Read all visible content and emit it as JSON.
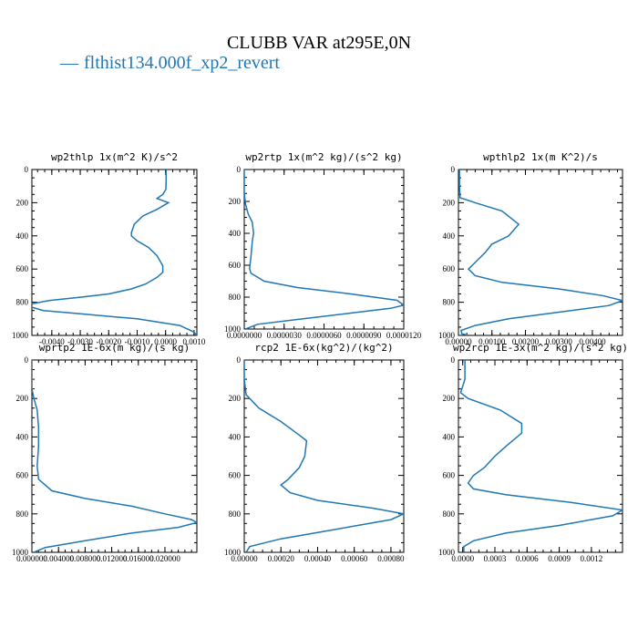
{
  "title": "CLUBB VAR at295E,0N",
  "legend": {
    "marker": "—",
    "label": "flthist134.000f_xp2_revert",
    "color": "#1f77b4"
  },
  "chart_data": [
    {
      "type": "line",
      "title": "wp2thlp  1x(m^2 K)/s^2",
      "ylim": [
        1000,
        0
      ],
      "yticks": [
        0,
        200,
        400,
        600,
        800,
        1000
      ],
      "xlim": [
        -0.0047,
        0.0011
      ],
      "xticks": [
        -0.004,
        -0.003,
        -0.002,
        -0.001,
        0.0,
        0.001
      ],
      "xtick_labels": [
        "-0.0040",
        "-0.0030",
        "-0.0020",
        "-0.0010",
        "0.0000",
        "0.0010"
      ],
      "series": [
        {
          "color": "#1f77b4",
          "x": [
            2e-05,
            2e-05,
            1e-05,
            -0.0001,
            -0.0003,
            0.0001,
            -0.0003,
            -0.0008,
            -0.0011,
            -0.0012,
            -0.0012,
            -0.001,
            -0.0006,
            -0.0003,
            -0.0001,
            -0.0001,
            -0.0003,
            -0.0007,
            -0.0012,
            -0.002,
            -0.003,
            -0.0041,
            -0.0047,
            -0.0047,
            -0.0043,
            -0.003,
            -0.001,
            0.0005,
            0.001,
            0.0011
          ],
          "y": [
            0,
            60,
            120,
            150,
            175,
            200,
            240,
            280,
            330,
            380,
            400,
            430,
            470,
            520,
            580,
            620,
            650,
            690,
            720,
            750,
            770,
            790,
            810,
            830,
            850,
            870,
            900,
            940,
            980,
            1000
          ]
        }
      ]
    },
    {
      "type": "line",
      "title": "wp2rtp  1x(m^2 kg)/(s^2 kg)",
      "ylim": [
        1000,
        0
      ],
      "yticks": [
        0,
        200,
        400,
        600,
        800,
        1000
      ],
      "xlim": [
        0.0,
        1.2e-05
      ],
      "xticks": [
        0.0,
        3e-06,
        6e-06,
        9e-06,
        1.2e-05
      ],
      "xtick_labels": [
        "0.0000000",
        "0.0000030",
        "0.0000060",
        "0.0000090",
        "0.0000120"
      ],
      "series": [
        {
          "color": "#1f77b4",
          "x": [
            0.0,
            0.0,
            1e-07,
            3e-07,
            6e-07,
            7e-07,
            6e-07,
            5e-07,
            4e-07,
            5e-07,
            1.5e-06,
            4e-06,
            8e-06,
            1.15e-05,
            1.2e-05,
            1.1e-05,
            8e-06,
            4e-06,
            1e-06,
            1e-07
          ],
          "y": [
            0,
            150,
            220,
            280,
            330,
            400,
            450,
            550,
            620,
            650,
            700,
            740,
            780,
            820,
            850,
            870,
            900,
            940,
            970,
            1000
          ]
        }
      ]
    },
    {
      "type": "line",
      "title": "wpthlp2  1x(m K^2)/s",
      "ylim": [
        1000,
        0
      ],
      "yticks": [
        0,
        200,
        400,
        600,
        800,
        1000
      ],
      "xlim": [
        0.0,
        0.0049
      ],
      "xticks": [
        0.0,
        0.001,
        0.002,
        0.003,
        0.004
      ],
      "xtick_labels": [
        "0.00000",
        "0.00100",
        "0.00200",
        "0.00300",
        "0.00400"
      ],
      "series": [
        {
          "color": "#1f77b4",
          "x": [
            3e-05,
            3e-05,
            5e-05,
            0.0005,
            0.0013,
            0.0018,
            0.0015,
            0.001,
            0.0008,
            0.0005,
            0.0003,
            0.0005,
            0.0013,
            0.003,
            0.0043,
            0.0049,
            0.0045,
            0.003,
            0.0015,
            0.0005,
            8e-05,
            0.0001,
            0.0003
          ],
          "y": [
            0,
            100,
            170,
            200,
            250,
            330,
            400,
            450,
            500,
            560,
            600,
            640,
            680,
            720,
            760,
            790,
            820,
            860,
            900,
            940,
            970,
            990,
            1000
          ]
        }
      ]
    },
    {
      "type": "line",
      "title": "wprtp2  1E-6x(m kg)/(s kg)",
      "ylim": [
        1000,
        0
      ],
      "yticks": [
        0,
        200,
        400,
        600,
        800,
        1000
      ],
      "xlim": [
        0.0,
        0.0248
      ],
      "xticks": [
        0.0,
        0.004,
        0.008,
        0.012,
        0.016,
        0.02
      ],
      "xtick_labels": [
        "0.000000",
        "0.004000",
        "0.008000",
        "0.012000",
        "0.016000",
        "0.020000"
      ],
      "series": [
        {
          "color": "#1f77b4",
          "x": [
            0.0,
            0.0,
            0.0003,
            0.0008,
            0.001,
            0.001,
            0.0008,
            0.001,
            0.003,
            0.008,
            0.015,
            0.02,
            0.024,
            0.0248,
            0.022,
            0.015,
            0.008,
            0.002,
            0.0003
          ],
          "y": [
            0,
            150,
            200,
            260,
            350,
            450,
            550,
            620,
            680,
            720,
            760,
            800,
            830,
            845,
            870,
            900,
            940,
            975,
            1000
          ]
        }
      ]
    },
    {
      "type": "line",
      "title": "rcp2  1E-6x(kg^2)/(kg^2)",
      "ylim": [
        1000,
        0
      ],
      "yticks": [
        0,
        200,
        400,
        600,
        800,
        1000
      ],
      "xlim": [
        0.0,
        0.00087
      ],
      "xticks": [
        0.0,
        0.0002,
        0.0004,
        0.0006,
        0.0008
      ],
      "xtick_labels": [
        "0.00000",
        "0.00020",
        "0.00040",
        "0.00060",
        "0.00080"
      ],
      "series": [
        {
          "color": "#1f77b4",
          "x": [
            0.0,
            0.0,
            1e-05,
            8e-05,
            0.0002,
            0.0003,
            0.00034,
            0.00033,
            0.0003,
            0.00024,
            0.0002,
            0.00025,
            0.0004,
            0.0007,
            0.00087,
            0.0008,
            0.0005,
            0.0002,
            3e-05,
            1e-05
          ],
          "y": [
            0,
            100,
            180,
            250,
            320,
            390,
            420,
            500,
            560,
            620,
            650,
            690,
            730,
            770,
            800,
            830,
            880,
            930,
            970,
            1000
          ]
        }
      ]
    },
    {
      "type": "line",
      "title": "wp2rcp  1E-3x(m^2 kg)/(s^2 kg)",
      "ylim": [
        1000,
        0
      ],
      "yticks": [
        0,
        200,
        400,
        600,
        800,
        1000
      ],
      "xlim": [
        -4e-05,
        0.00149
      ],
      "xticks": [
        0.0,
        0.0003,
        0.0006,
        0.0009,
        0.0012
      ],
      "xtick_labels": [
        "0.0000",
        "0.0003",
        "0.0006",
        "0.0009",
        "0.0012"
      ],
      "series": [
        {
          "color": "#1f77b4",
          "x": [
            2e-05,
            2e-05,
            -2e-05,
            5e-05,
            0.00035,
            0.00055,
            0.00055,
            0.0004,
            0.0003,
            0.0002,
            0.0001,
            5e-05,
            0.0001,
            0.0004,
            0.001,
            0.00149,
            0.0014,
            0.0009,
            0.0004,
            0.0001,
            1e-05,
            1e-05
          ],
          "y": [
            0,
            100,
            170,
            200,
            260,
            330,
            380,
            450,
            500,
            560,
            600,
            640,
            670,
            700,
            740,
            780,
            810,
            860,
            900,
            940,
            970,
            1000
          ]
        }
      ]
    }
  ]
}
